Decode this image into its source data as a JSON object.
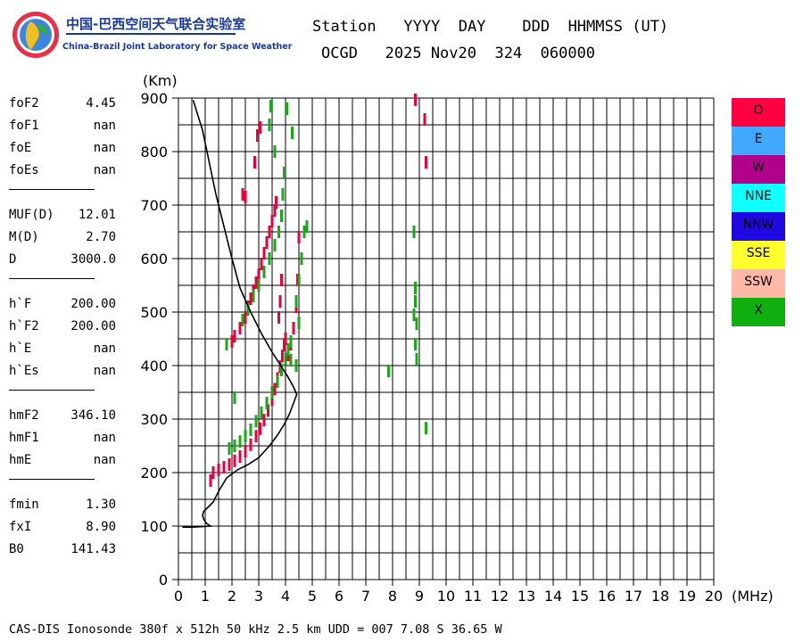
{
  "logo": {
    "cn": "中国-巴西空间天气联合实验室",
    "en": "China-Brazil Joint Laboratory for Space Weather"
  },
  "header": {
    "line1": "Station   YYYY  DAY    DDD  HHMMSS (UT)",
    "line2": "OCGD   2025 Nov20  324  060000"
  },
  "params": {
    "group1": [
      {
        "label": "foF2",
        "value": "4.45"
      },
      {
        "label": "foF1",
        "value": "nan"
      },
      {
        "label": "foE",
        "value": "nan"
      },
      {
        "label": "foEs",
        "value": "nan"
      }
    ],
    "group2": [
      {
        "label": "MUF(D)",
        "value": "12.01"
      },
      {
        "label": "M(D)",
        "value": "2.70"
      },
      {
        "label": "D",
        "value": "3000.0"
      }
    ],
    "group3": [
      {
        "label": "h`F",
        "value": "200.00"
      },
      {
        "label": "h`F2",
        "value": "200.00"
      },
      {
        "label": "h`E",
        "value": "nan"
      },
      {
        "label": "h`Es",
        "value": "nan"
      }
    ],
    "group4": [
      {
        "label": "hmF2",
        "value": "346.10"
      },
      {
        "label": "hmF1",
        "value": "nan"
      },
      {
        "label": "hmE",
        "value": "nan"
      }
    ],
    "group5": [
      {
        "label": "fmin",
        "value": "1.30"
      },
      {
        "label": "fxI",
        "value": "8.90"
      },
      {
        "label": "B0",
        "value": "141.43"
      }
    ]
  },
  "legend": [
    {
      "label": "O",
      "color": "#ff0040"
    },
    {
      "label": "E",
      "color": "#40a8ff"
    },
    {
      "label": "W",
      "color": "#b0008c"
    },
    {
      "label": "NNE",
      "color": "#10ffff"
    },
    {
      "label": "NNW",
      "color": "#2008e0"
    },
    {
      "label": "SSE",
      "color": "#ffff30"
    },
    {
      "label": "SSW",
      "color": "#ffb8a8"
    },
    {
      "label": "X",
      "color": "#10b010"
    }
  ],
  "footer": "CAS-DIS Ionosonde 380f x 512h 50 kHz 2.5 km UDD = 007 7.08 S 36.65 W",
  "chart_data": {
    "type": "scatter",
    "xlabel": "(MHz)",
    "ylabel": "(Km)",
    "xlim": [
      0,
      20
    ],
    "ylim": [
      0,
      900
    ],
    "xticks": [
      0,
      1,
      2,
      3,
      4,
      5,
      6,
      7,
      8,
      9,
      10,
      11,
      12,
      13,
      14,
      15,
      16,
      17,
      18,
      19,
      20
    ],
    "yticks": [
      0,
      100,
      200,
      300,
      400,
      500,
      600,
      700,
      800,
      900
    ],
    "grid": true,
    "series": [
      {
        "name": "O",
        "color": "#e8003c",
        "points": [
          [
            1.2,
            185
          ],
          [
            1.3,
            200
          ],
          [
            1.5,
            205
          ],
          [
            1.7,
            210
          ],
          [
            1.9,
            215
          ],
          [
            2.1,
            222
          ],
          [
            2.3,
            230
          ],
          [
            2.5,
            240
          ],
          [
            2.7,
            252
          ],
          [
            2.9,
            268
          ],
          [
            3.05,
            282
          ],
          [
            3.2,
            298
          ],
          [
            3.35,
            316
          ],
          [
            3.5,
            336
          ],
          [
            3.6,
            356
          ],
          [
            3.7,
            376
          ],
          [
            3.8,
            398
          ],
          [
            3.88,
            418
          ],
          [
            3.95,
            438
          ],
          [
            4.0,
            450
          ],
          [
            2.0,
            445
          ],
          [
            2.1,
            455
          ],
          [
            2.3,
            470
          ],
          [
            2.5,
            490
          ],
          [
            2.6,
            510
          ],
          [
            2.7,
            525
          ],
          [
            2.8,
            540
          ],
          [
            2.9,
            555
          ],
          [
            3.0,
            570
          ],
          [
            3.1,
            590
          ],
          [
            3.2,
            610
          ],
          [
            3.3,
            630
          ],
          [
            3.4,
            650
          ],
          [
            3.5,
            670
          ],
          [
            3.6,
            690
          ],
          [
            3.65,
            705
          ],
          [
            2.85,
            780
          ],
          [
            2.95,
            830
          ],
          [
            3.05,
            845
          ],
          [
            2.4,
            720
          ],
          [
            2.5,
            715
          ],
          [
            4.1,
            420
          ],
          [
            4.2,
            440
          ],
          [
            4.3,
            470
          ],
          [
            4.4,
            510
          ],
          [
            4.45,
            560
          ],
          [
            4.5,
            640
          ],
          [
            3.75,
            490
          ],
          [
            3.8,
            520
          ],
          [
            3.85,
            560
          ],
          [
            8.85,
            897
          ],
          [
            9.2,
            860
          ],
          [
            9.25,
            780
          ]
        ]
      },
      {
        "name": "X",
        "color": "#18a818",
        "points": [
          [
            1.9,
            245
          ],
          [
            2.1,
            250
          ],
          [
            2.3,
            258
          ],
          [
            2.5,
            268
          ],
          [
            2.7,
            280
          ],
          [
            2.9,
            296
          ],
          [
            3.1,
            312
          ],
          [
            3.3,
            330
          ],
          [
            3.5,
            350
          ],
          [
            3.7,
            370
          ],
          [
            3.85,
            392
          ],
          [
            4.0,
            412
          ],
          [
            4.1,
            430
          ],
          [
            4.2,
            445
          ],
          [
            1.8,
            440
          ],
          [
            2.1,
            340
          ],
          [
            2.4,
            485
          ],
          [
            2.6,
            505
          ],
          [
            2.8,
            530
          ],
          [
            3.0,
            550
          ],
          [
            3.2,
            575
          ],
          [
            3.4,
            600
          ],
          [
            3.6,
            625
          ],
          [
            3.75,
            650
          ],
          [
            3.85,
            680
          ],
          [
            3.9,
            720
          ],
          [
            3.95,
            760
          ],
          [
            3.45,
            885
          ],
          [
            4.05,
            880
          ],
          [
            4.25,
            835
          ],
          [
            3.4,
            850
          ],
          [
            3.6,
            800
          ],
          [
            4.4,
            520
          ],
          [
            4.5,
            560
          ],
          [
            4.6,
            600
          ],
          [
            4.7,
            650
          ],
          [
            4.8,
            660
          ],
          [
            4.4,
            400
          ],
          [
            4.2,
            410
          ],
          [
            4.5,
            480
          ],
          [
            7.85,
            390
          ],
          [
            8.8,
            650
          ],
          [
            8.85,
            545
          ],
          [
            8.85,
            520
          ],
          [
            8.8,
            495
          ],
          [
            8.9,
            478
          ],
          [
            8.85,
            440
          ],
          [
            8.9,
            412
          ],
          [
            9.25,
            283
          ]
        ]
      }
    ],
    "trace": {
      "name": "profile",
      "color": "#000000",
      "points": [
        [
          0.15,
          98
        ],
        [
          0.5,
          98
        ],
        [
          0.9,
          99
        ],
        [
          1.2,
          100
        ],
        [
          1.05,
          105
        ],
        [
          0.95,
          112
        ],
        [
          0.9,
          120
        ],
        [
          0.95,
          128
        ],
        [
          1.1,
          135
        ],
        [
          1.3,
          145
        ],
        [
          1.5,
          165
        ],
        [
          1.8,
          190
        ],
        [
          2.2,
          205
        ],
        [
          2.6,
          215
        ],
        [
          3.0,
          228
        ],
        [
          3.4,
          250
        ],
        [
          3.7,
          270
        ],
        [
          3.95,
          290
        ],
        [
          4.15,
          310
        ],
        [
          4.3,
          330
        ],
        [
          4.42,
          346
        ],
        [
          4.3,
          360
        ],
        [
          4.1,
          378
        ],
        [
          3.85,
          398
        ],
        [
          3.5,
          425
        ],
        [
          3.1,
          460
        ],
        [
          2.7,
          500
        ],
        [
          2.3,
          545
        ],
        [
          2.0,
          600
        ],
        [
          1.7,
          660
        ],
        [
          1.4,
          720
        ],
        [
          1.15,
          780
        ],
        [
          0.9,
          840
        ],
        [
          0.55,
          896
        ]
      ]
    }
  }
}
